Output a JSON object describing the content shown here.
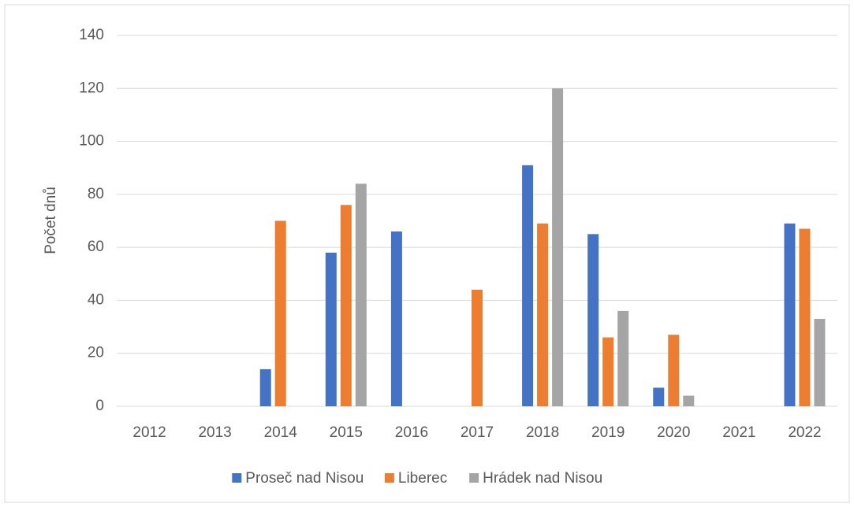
{
  "chart_data": {
    "type": "bar",
    "y_label": "Počet dnů",
    "categories": [
      "2012",
      "2013",
      "2014",
      "2015",
      "2016",
      "2017",
      "2018",
      "2019",
      "2020",
      "2021",
      "2022"
    ],
    "series": [
      {
        "name": "Proseč nad Nisou",
        "color": "#4472c4",
        "values": [
          0,
          0,
          14,
          58,
          66,
          0,
          91,
          65,
          7,
          0,
          69
        ]
      },
      {
        "name": "Liberec",
        "color": "#ed7d31",
        "values": [
          0,
          0,
          70,
          76,
          0,
          44,
          69,
          26,
          27,
          0,
          67
        ]
      },
      {
        "name": "Hrádek nad Nisou",
        "color": "#a5a5a5",
        "values": [
          0,
          0,
          0,
          84,
          0,
          0,
          120,
          36,
          4,
          0,
          33
        ]
      }
    ],
    "ylim": [
      0,
      140
    ],
    "yticks": [
      0,
      20,
      40,
      60,
      80,
      100,
      120,
      140
    ],
    "grid": true,
    "legend": "bottom"
  }
}
